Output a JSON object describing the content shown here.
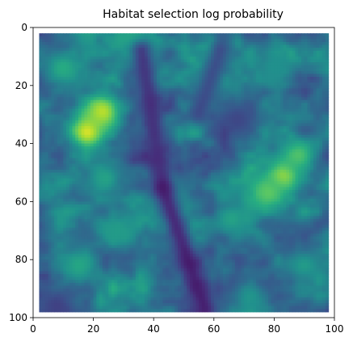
{
  "chart_data": {
    "type": "heatmap",
    "title": "Habitat selection log probability",
    "xlabel": "",
    "ylabel": "",
    "grid": false,
    "legend": "none",
    "colormap": "viridis",
    "xlim": [
      0,
      100
    ],
    "ylim": [
      100,
      0
    ],
    "y_axis_inverted": true,
    "x_ticks": [
      "0",
      "20",
      "40",
      "60",
      "80",
      "100"
    ],
    "y_ticks": [
      "0",
      "20",
      "40",
      "60",
      "80",
      "100"
    ],
    "data_extent": {
      "x": [
        2,
        98
      ],
      "y": [
        2,
        98
      ]
    },
    "grid_size": [
      96,
      96
    ],
    "background_level": 0.0,
    "value_scale": "relative (0 = darkest purple, 1 = brightest yellow)",
    "typical_level": 0.38,
    "features": [
      {
        "kind": "hotspot",
        "x": 18,
        "y": 36,
        "value": 0.95
      },
      {
        "kind": "hotspot",
        "x": 23,
        "y": 29,
        "value": 0.9
      },
      {
        "kind": "hotspot",
        "x": 83,
        "y": 51,
        "value": 0.85
      },
      {
        "kind": "hotspot",
        "x": 78,
        "y": 57,
        "value": 0.75
      },
      {
        "kind": "hotspot",
        "x": 88,
        "y": 44,
        "value": 0.72
      },
      {
        "kind": "hotspot",
        "x": 10,
        "y": 14,
        "value": 0.62
      },
      {
        "kind": "hotspot",
        "x": 33,
        "y": 4,
        "value": 0.6
      },
      {
        "kind": "hotspot",
        "x": 24,
        "y": 52,
        "value": 0.58
      },
      {
        "kind": "hotspot",
        "x": 15,
        "y": 82,
        "value": 0.6
      },
      {
        "kind": "hotspot",
        "x": 47,
        "y": 60,
        "value": 0.52
      },
      {
        "kind": "hotspot",
        "x": 66,
        "y": 66,
        "value": 0.58
      },
      {
        "kind": "hotspot",
        "x": 90,
        "y": 82,
        "value": 0.55
      },
      {
        "kind": "hotspot",
        "x": 72,
        "y": 93,
        "value": 0.52
      },
      {
        "kind": "hotspot",
        "x": 59,
        "y": 18,
        "value": 0.5
      },
      {
        "kind": "hotspot",
        "x": 80,
        "y": 14,
        "value": 0.5
      },
      {
        "kind": "hotspot",
        "x": 28,
        "y": 70,
        "value": 0.55
      },
      {
        "kind": "low_corridor",
        "from": [
          36,
          8
        ],
        "to": [
          43,
          55
        ],
        "value": 0.12
      },
      {
        "kind": "low_corridor",
        "from": [
          43,
          55
        ],
        "to": [
          57,
          97
        ],
        "value": 0.06
      },
      {
        "kind": "low_corridor",
        "from": [
          55,
          30
        ],
        "to": [
          62,
          8
        ],
        "value": 0.2
      },
      {
        "kind": "low_region",
        "x": 68,
        "y": 32,
        "value": 0.22
      },
      {
        "kind": "low_region",
        "x": 8,
        "y": 96,
        "value": 0.2
      }
    ]
  }
}
